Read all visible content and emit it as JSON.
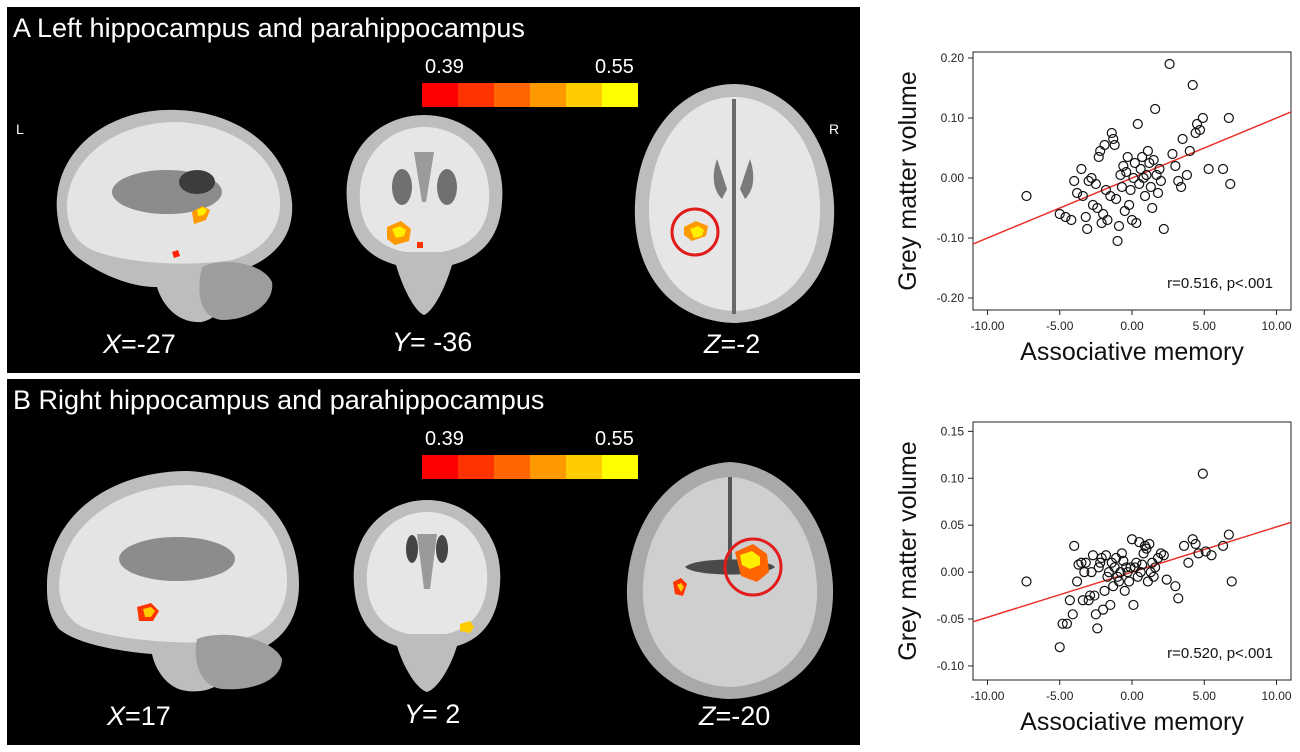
{
  "panels": [
    {
      "title": "A  Left hippocampus and parahippocampus",
      "left_label": "L",
      "right_label": "R",
      "colorbar": {
        "min_label": "0.39",
        "max_label": "0.55",
        "colors": [
          "#ff0000",
          "#ff3300",
          "#ff6600",
          "#ff9900",
          "#ffcc00",
          "#ffff00"
        ]
      },
      "slices": [
        {
          "axis": "X",
          "value": "=-27"
        },
        {
          "axis": "Y",
          "value": "= -36"
        },
        {
          "axis": "Z",
          "value": "=-2"
        }
      ]
    },
    {
      "title": "B Right hippocampus and parahippocampus",
      "colorbar": {
        "min_label": "0.39",
        "max_label": "0.55",
        "colors": [
          "#ff0000",
          "#ff3300",
          "#ff6600",
          "#ff9900",
          "#ffcc00",
          "#ffff00"
        ]
      },
      "slices": [
        {
          "axis": "X",
          "value": "=17"
        },
        {
          "axis": "Y",
          "value": "= 2"
        },
        {
          "axis": "Z",
          "value": "=-20"
        }
      ]
    }
  ],
  "chart_data": [
    {
      "type": "scatter",
      "xlabel": "Associative memory",
      "ylabel": "Grey matter volume",
      "xlim": [
        -11,
        11
      ],
      "ylim": [
        -0.22,
        0.21
      ],
      "xticks": [
        -10,
        -5,
        0,
        5,
        10
      ],
      "xtick_labels": [
        "-10.00",
        "-5.00",
        "0.00",
        "5.00",
        "10.00"
      ],
      "yticks": [
        -0.2,
        -0.1,
        0,
        0.1,
        0.2
      ],
      "ytick_labels": [
        "-0.20",
        "-0.10",
        "0.00",
        "0.10",
        "0.20"
      ],
      "annotation": "r=0.516, p<.001",
      "fit_line": {
        "x": [
          -11,
          11
        ],
        "y": [
          -0.11,
          0.11
        ],
        "color": "#e8322a"
      },
      "points": [
        [
          -7.3,
          -0.03
        ],
        [
          -5.0,
          -0.06
        ],
        [
          -4.6,
          -0.065
        ],
        [
          -4.2,
          -0.07
        ],
        [
          -4.0,
          -0.005
        ],
        [
          -3.8,
          -0.025
        ],
        [
          -3.5,
          0.015
        ],
        [
          -3.4,
          -0.03
        ],
        [
          -3.2,
          -0.065
        ],
        [
          -3.1,
          -0.085
        ],
        [
          -3.0,
          -0.005
        ],
        [
          -2.8,
          0.0
        ],
        [
          -2.7,
          -0.045
        ],
        [
          -2.5,
          -0.01
        ],
        [
          -2.4,
          -0.05
        ],
        [
          -2.3,
          0.035
        ],
        [
          -2.2,
          0.045
        ],
        [
          -2.1,
          -0.075
        ],
        [
          -2.0,
          -0.06
        ],
        [
          -1.9,
          0.055
        ],
        [
          -1.8,
          -0.02
        ],
        [
          -1.7,
          -0.07
        ],
        [
          -1.5,
          -0.03
        ],
        [
          -1.4,
          0.075
        ],
        [
          -1.3,
          0.065
        ],
        [
          -1.2,
          0.055
        ],
        [
          -1.1,
          -0.035
        ],
        [
          -1.0,
          -0.105
        ],
        [
          -0.9,
          -0.08
        ],
        [
          -0.8,
          0.005
        ],
        [
          -0.7,
          -0.015
        ],
        [
          -0.6,
          0.02
        ],
        [
          -0.5,
          -0.055
        ],
        [
          -0.4,
          0.01
        ],
        [
          -0.3,
          0.035
        ],
        [
          -0.2,
          -0.045
        ],
        [
          -0.1,
          -0.02
        ],
        [
          0.0,
          -0.07
        ],
        [
          0.1,
          0.0
        ],
        [
          0.2,
          0.025
        ],
        [
          0.3,
          -0.075
        ],
        [
          0.4,
          0.09
        ],
        [
          0.5,
          -0.01
        ],
        [
          0.6,
          0.015
        ],
        [
          0.7,
          0.035
        ],
        [
          0.8,
          0.0
        ],
        [
          0.9,
          -0.03
        ],
        [
          1.0,
          0.005
        ],
        [
          1.1,
          0.045
        ],
        [
          1.2,
          0.025
        ],
        [
          1.3,
          -0.015
        ],
        [
          1.4,
          -0.05
        ],
        [
          1.5,
          0.03
        ],
        [
          1.6,
          0.115
        ],
        [
          1.7,
          0.005
        ],
        [
          1.8,
          -0.025
        ],
        [
          1.9,
          0.015
        ],
        [
          2.0,
          -0.005
        ],
        [
          2.2,
          -0.085
        ],
        [
          2.6,
          0.19
        ],
        [
          2.8,
          0.04
        ],
        [
          3.0,
          0.02
        ],
        [
          3.2,
          -0.005
        ],
        [
          3.4,
          -0.015
        ],
        [
          3.5,
          0.065
        ],
        [
          3.8,
          0.005
        ],
        [
          4.0,
          0.045
        ],
        [
          4.2,
          0.155
        ],
        [
          4.4,
          0.075
        ],
        [
          4.5,
          0.09
        ],
        [
          4.7,
          0.08
        ],
        [
          4.9,
          0.1
        ],
        [
          5.3,
          0.015
        ],
        [
          6.3,
          0.015
        ],
        [
          6.7,
          0.1
        ],
        [
          6.8,
          -0.01
        ]
      ]
    },
    {
      "type": "scatter",
      "xlabel": "Associative memory",
      "ylabel": "Grey matter volume",
      "xlim": [
        -11,
        11
      ],
      "ylim": [
        -0.115,
        0.16
      ],
      "xticks": [
        -10,
        -5,
        0,
        5,
        10
      ],
      "xtick_labels": [
        "-10.00",
        "-5.00",
        "0.00",
        "5.00",
        "10.00"
      ],
      "yticks": [
        -0.1,
        -0.05,
        0,
        0.05,
        0.1,
        0.15
      ],
      "ytick_labels": [
        "-0.10",
        "-0.05",
        "0.00",
        "0.05",
        "0.10",
        "0.15"
      ],
      "annotation": "r=0.520, p<.001",
      "fit_line": {
        "x": [
          -11,
          11
        ],
        "y": [
          -0.053,
          0.053
        ],
        "color": "#e8322a"
      },
      "points": [
        [
          -7.3,
          -0.01
        ],
        [
          -5.0,
          -0.08
        ],
        [
          -4.8,
          -0.055
        ],
        [
          -4.5,
          -0.055
        ],
        [
          -4.3,
          -0.03
        ],
        [
          -4.1,
          -0.045
        ],
        [
          -4.0,
          0.028
        ],
        [
          -3.8,
          -0.01
        ],
        [
          -3.7,
          0.008
        ],
        [
          -3.5,
          0.01
        ],
        [
          -3.4,
          -0.03
        ],
        [
          -3.3,
          0.0
        ],
        [
          -3.2,
          0.01
        ],
        [
          -3.0,
          -0.03
        ],
        [
          -2.9,
          -0.025
        ],
        [
          -2.8,
          0.0
        ],
        [
          -2.7,
          0.018
        ],
        [
          -2.6,
          -0.025
        ],
        [
          -2.5,
          -0.045
        ],
        [
          -2.4,
          -0.06
        ],
        [
          -2.3,
          0.005
        ],
        [
          -2.2,
          0.01
        ],
        [
          -2.1,
          0.015
        ],
        [
          -2.0,
          -0.04
        ],
        [
          -1.9,
          -0.02
        ],
        [
          -1.8,
          0.018
        ],
        [
          -1.7,
          -0.005
        ],
        [
          -1.6,
          0.0
        ],
        [
          -1.5,
          -0.035
        ],
        [
          -1.4,
          0.01
        ],
        [
          -1.3,
          -0.015
        ],
        [
          -1.2,
          0.005
        ],
        [
          -1.1,
          0.015
        ],
        [
          -1.0,
          -0.005
        ],
        [
          -0.9,
          -0.01
        ],
        [
          -0.8,
          0.0
        ],
        [
          -0.7,
          0.02
        ],
        [
          -0.6,
          0.012
        ],
        [
          -0.5,
          -0.02
        ],
        [
          -0.4,
          0.005
        ],
        [
          -0.3,
          0.0
        ],
        [
          -0.2,
          -0.01
        ],
        [
          -0.1,
          0.005
        ],
        [
          0.0,
          0.035
        ],
        [
          0.1,
          -0.035
        ],
        [
          0.2,
          0.005
        ],
        [
          0.3,
          0.01
        ],
        [
          0.4,
          -0.005
        ],
        [
          0.5,
          0.032
        ],
        [
          0.6,
          0.0
        ],
        [
          0.7,
          0.008
        ],
        [
          0.8,
          0.02
        ],
        [
          0.9,
          0.028
        ],
        [
          1.0,
          0.025
        ],
        [
          1.1,
          -0.01
        ],
        [
          1.2,
          0.03
        ],
        [
          1.3,
          0.0
        ],
        [
          1.4,
          0.01
        ],
        [
          1.5,
          -0.005
        ],
        [
          1.6,
          0.005
        ],
        [
          1.8,
          0.015
        ],
        [
          2.0,
          0.02
        ],
        [
          2.2,
          0.018
        ],
        [
          2.4,
          -0.008
        ],
        [
          3.0,
          -0.015
        ],
        [
          3.2,
          -0.028
        ],
        [
          3.6,
          0.028
        ],
        [
          3.9,
          0.01
        ],
        [
          4.2,
          0.035
        ],
        [
          4.4,
          0.03
        ],
        [
          4.6,
          0.02
        ],
        [
          4.9,
          0.105
        ],
        [
          5.1,
          0.022
        ],
        [
          5.5,
          0.018
        ],
        [
          6.3,
          0.028
        ],
        [
          6.7,
          0.04
        ],
        [
          6.9,
          -0.01
        ]
      ]
    }
  ]
}
